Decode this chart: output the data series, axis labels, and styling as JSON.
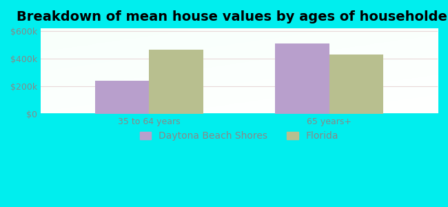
{
  "title": "Breakdown of mean house values by ages of householders",
  "categories": [
    "35 to 64 years",
    "65 years+"
  ],
  "series": {
    "Daytona Beach Shores": [
      240000,
      510000
    ],
    "Florida": [
      465000,
      430000
    ]
  },
  "bar_colors": {
    "Daytona Beach Shores": "#b89fcc",
    "Florida": "#b8bf8f"
  },
  "ylim": [
    0,
    620000
  ],
  "yticks": [
    0,
    200000,
    400000,
    600000
  ],
  "ytick_labels": [
    "$0",
    "$200k",
    "$400k",
    "$600k"
  ],
  "background_color": "#00eeee",
  "title_fontsize": 14,
  "tick_fontsize": 9,
  "legend_fontsize": 10,
  "bar_width": 0.3,
  "tick_color": "#888888"
}
